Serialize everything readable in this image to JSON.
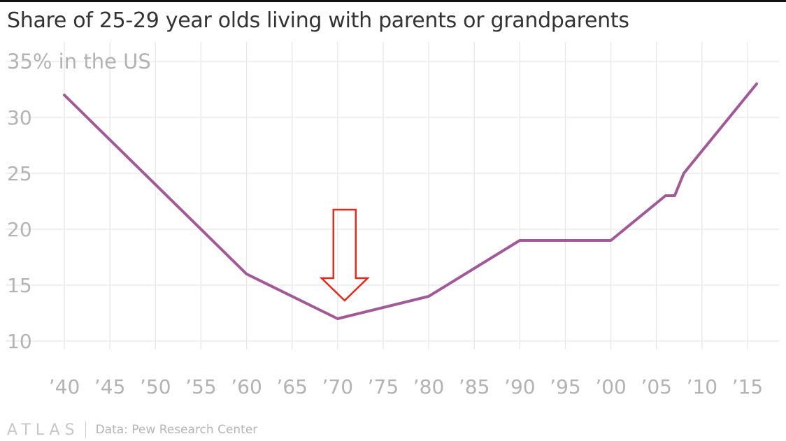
{
  "title": "Share of 25-29 year olds living with parents or grandparents",
  "footer": {
    "logo": "ATLAS",
    "source": "Data: Pew Research Center"
  },
  "colors": {
    "line": "#a05b96",
    "grid": "#e6e6e6",
    "tick_text": "#b3b3b3",
    "arrow": "#e8281b"
  },
  "annotation": {
    "type": "arrow-down",
    "points_to_year": 1970
  },
  "chart_data": {
    "type": "line",
    "title": "Share of 25-29 year olds living with parents or grandparents",
    "ylabel": "35% in the US",
    "xlabel": "",
    "x_ticks": [
      1940,
      1945,
      1950,
      1955,
      1960,
      1965,
      1970,
      1975,
      1980,
      1985,
      1990,
      1995,
      2000,
      2005,
      2010,
      2015
    ],
    "x_tick_labels": [
      "’40",
      "’45",
      "’50",
      "’55",
      "’60",
      "’65",
      "’70",
      "’75",
      "’80",
      "’85",
      "’90",
      "’95",
      "’00",
      "’05",
      "’10",
      "’15"
    ],
    "y_ticks": [
      10,
      15,
      20,
      25,
      30,
      35
    ],
    "y_tick_labels": [
      "10",
      "15",
      "20",
      "25",
      "30",
      "35% in the US"
    ],
    "xlim": [
      1940,
      2016
    ],
    "ylim": [
      10,
      35
    ],
    "grid": true,
    "series": [
      {
        "x": [
          1940,
          1960,
          1970,
          1980,
          1990,
          2000,
          2006,
          2007,
          2008,
          2016
        ],
        "y": [
          32,
          16,
          12,
          14,
          19,
          19,
          23,
          23,
          25,
          33
        ]
      }
    ]
  }
}
